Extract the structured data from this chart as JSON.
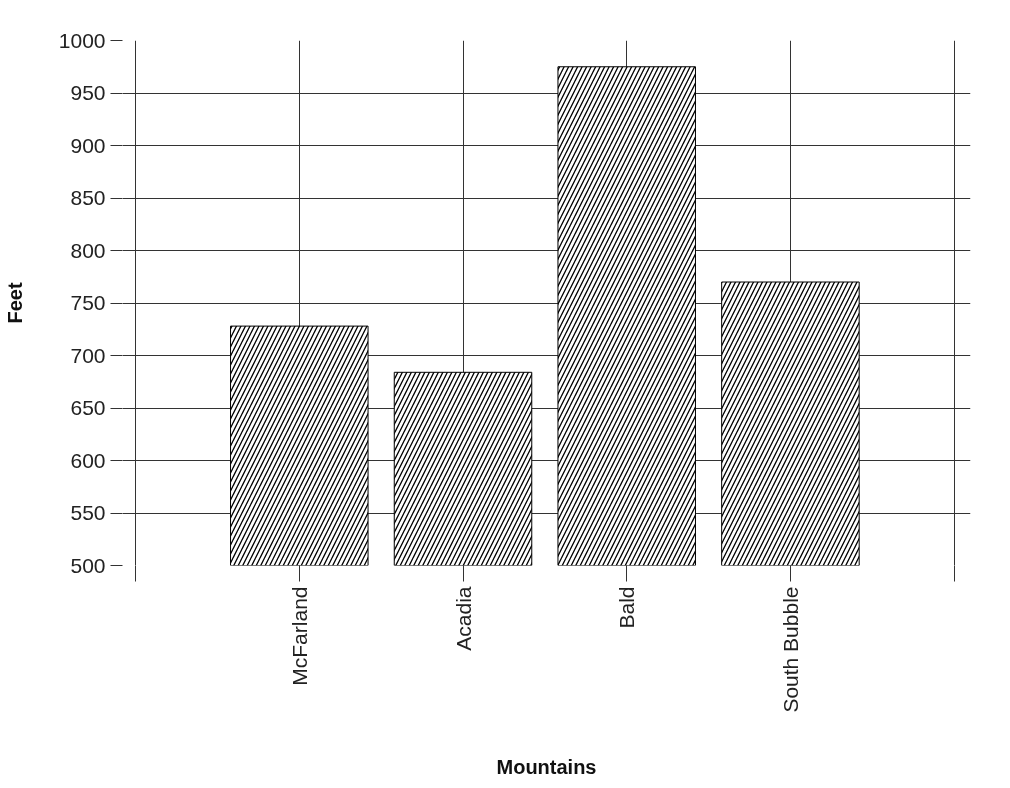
{
  "chart_data": {
    "type": "bar",
    "xlabel": "Mountains",
    "ylabel": "Feet",
    "categories": [
      "McFarland",
      "Acadia",
      "Bald",
      "South Bubble"
    ],
    "values": [
      728,
      684,
      975,
      770
    ],
    "color": "#000000",
    "ylim": [
      500,
      1000
    ],
    "yticks": [
      500,
      550,
      600,
      650,
      700,
      750,
      800,
      850,
      900,
      950,
      1000
    ],
    "grid": true
  }
}
